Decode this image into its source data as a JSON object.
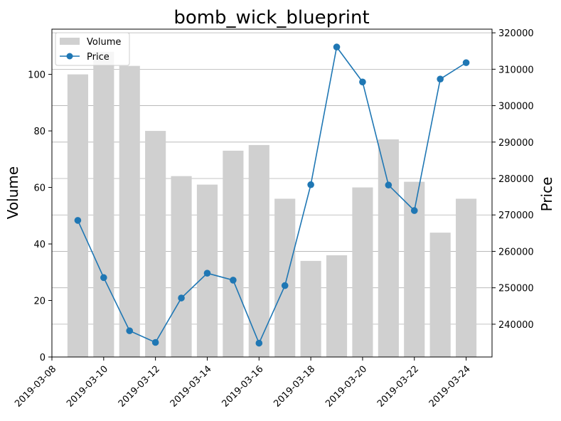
{
  "chart_data": {
    "type": "bar+line",
    "title": "bomb_wick_blueprint",
    "xlabel": "",
    "ylabel_left": "Volume",
    "ylabel_right": "Price",
    "x_ticks": [
      "2019-03-08",
      "2019-03-10",
      "2019-03-12",
      "2019-03-14",
      "2019-03-16",
      "2019-03-18",
      "2019-03-20",
      "2019-03-22",
      "2019-03-24"
    ],
    "x_range": [
      "2019-03-08",
      "2019-03-25"
    ],
    "y_left_range": [
      0,
      116
    ],
    "y_left_ticks": [
      0,
      20,
      40,
      60,
      80,
      100
    ],
    "y_right_range": [
      231000,
      321000
    ],
    "y_right_ticks": [
      240000,
      250000,
      260000,
      270000,
      280000,
      290000,
      300000,
      310000,
      320000
    ],
    "grid": "horizontal lines on right axis",
    "legend_position": "top-left",
    "series": [
      {
        "name": "Volume",
        "type": "bar",
        "color": "#d0d0d0",
        "x": [
          "2019-03-09",
          "2019-03-10",
          "2019-03-11",
          "2019-03-12",
          "2019-03-13",
          "2019-03-14",
          "2019-03-15",
          "2019-03-16",
          "2019-03-17",
          "2019-03-18",
          "2019-03-19",
          "2019-03-20",
          "2019-03-21",
          "2019-03-22",
          "2019-03-23",
          "2019-03-24"
        ],
        "values": [
          100,
          108,
          103,
          80,
          64,
          61,
          73,
          75,
          56,
          34,
          36,
          60,
          77,
          62,
          44,
          56
        ]
      },
      {
        "name": "Price",
        "type": "line",
        "color": "#1f77b4",
        "marker": "circle",
        "x": [
          "2019-03-09",
          "2019-03-10",
          "2019-03-11",
          "2019-03-12",
          "2019-03-13",
          "2019-03-14",
          "2019-03-15",
          "2019-03-16",
          "2019-03-17",
          "2019-03-18",
          "2019-03-19",
          "2019-03-20",
          "2019-03-21",
          "2019-03-22",
          "2019-03-23",
          "2019-03-24"
        ],
        "values": [
          268500,
          252800,
          238200,
          235000,
          247200,
          254000,
          252100,
          234800,
          250600,
          278300,
          316100,
          306500,
          278200,
          271200,
          307300,
          311800
        ]
      }
    ]
  }
}
